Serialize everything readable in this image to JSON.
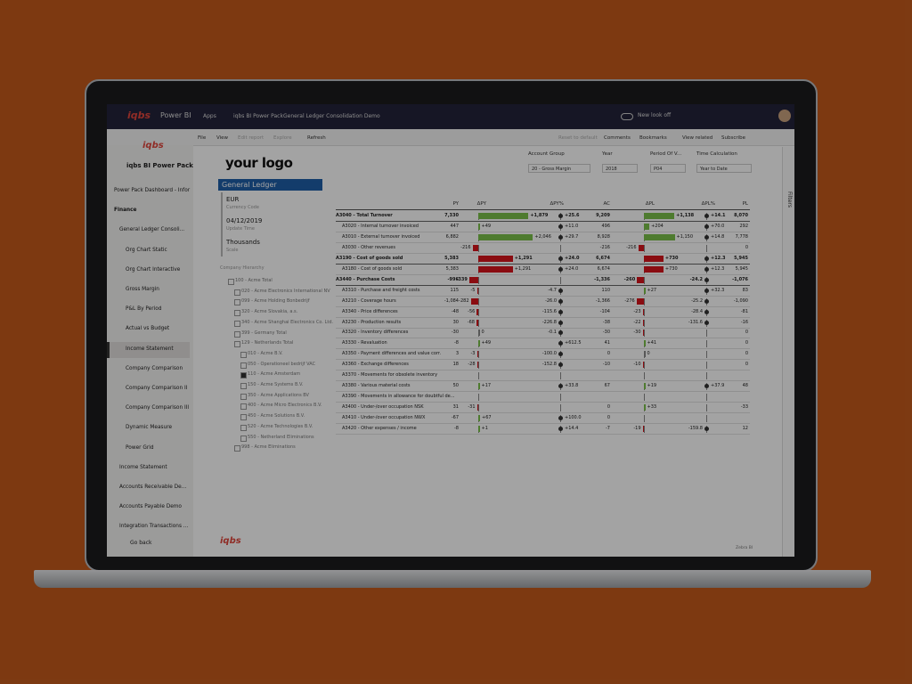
{
  "topbar": {
    "brand": "iqbs",
    "app": "Power BI",
    "apps": "Apps",
    "crumb1": "iqbs BI Power Pack",
    "crumb2": "General Ledger Consolidation Demo",
    "toggle": "New look off"
  },
  "toolbar": {
    "file": "File",
    "view": "View",
    "edit": "Edit report",
    "explore": "Explore",
    "refresh": "Refresh",
    "reset": "Reset to default",
    "comments": "Comments",
    "bookmarks": "Bookmarks",
    "related": "View related",
    "subscribe": "Subscribe"
  },
  "sidebar": {
    "logo": "iqbs",
    "title": "iqbs BI Power Pack",
    "items": [
      "Power Pack Dashboard - Infor",
      "Finance",
      "General Ledger Consoli...",
      "Org Chart Static",
      "Org Chart Interactive",
      "Gross Margin",
      "P&L By Period",
      "Actual vs Budget",
      "Income Statement",
      "Company Comparison",
      "Company Comparison II",
      "Company Comparison III",
      "Dynamic Measure",
      "Power Grid",
      "Income Statement",
      "Accounts Receivable De...",
      "Accounts Payable Demo",
      "Integration Transactions ..."
    ],
    "back": "Go back"
  },
  "report": {
    "logo": "your logo",
    "panel_title": "General Ledger",
    "fields": [
      {
        "value": "EUR",
        "label": "Currency Code"
      },
      {
        "value": "04/12/2019",
        "label": "Update Time"
      },
      {
        "value": "Thousands",
        "label": "Scale"
      }
    ],
    "hierarchy_title": "Company Hierarchy",
    "hierarchy": [
      "100 - Acme Total",
      "020 - Acme Electronics International NV",
      "099 - Acme Holding Bonbedrijf",
      "320 - Acme Slovakia, a.s.",
      "340 - Acme Shanghai Electronics Co. Ltd.",
      "399 - Germany Total",
      "129 - Netherlands Total",
      "010 - Acme B.V.",
      "050 - Operationeel bedrijf VAC",
      "110 - Acme Amsterdam",
      "150 - Acme Systems B.V.",
      "350 - Acme Applications BV",
      "400 - Acme Micro Electronics B.V.",
      "450 - Acme Solutions B.V.",
      "520 - Acme Technologies B.V.",
      "550 - Netherland Eliminations",
      "998 - Acme Eliminations"
    ],
    "filters": [
      {
        "label": "Account Group",
        "value": "20 - Gross Margin"
      },
      {
        "label": "Year",
        "value": "2018"
      },
      {
        "label": "Period Of V...",
        "value": "P04"
      },
      {
        "label": "Time Calculation",
        "value": "Year to Date"
      }
    ],
    "footer_logo": "iqbs",
    "footer_brand": "Zebra BI",
    "filters_pane": "Filters"
  },
  "table": {
    "columns": [
      "PY",
      "ΔPY",
      "ΔPY%",
      "AC",
      "ΔPL",
      "ΔPL%",
      "PL"
    ],
    "rows": [
      {
        "a": "A3040 - Total Turnover",
        "b": true,
        "py": "7,330",
        "dpy": 1879,
        "dpyl": "+1,879",
        "dpp": "+25.6",
        "ac": "9,209",
        "dpl": 1138,
        "dpll": "+1,138",
        "dplp": "+14.1",
        "pl": "8,070"
      },
      {
        "a": "A3020 - Internal turnover invoiced",
        "py": 447,
        "dpy": 49,
        "dpyl": "+49",
        "dpp": "+11.0",
        "ac": 496,
        "dpl": 204,
        "dpll": "+204",
        "dplp": "+70.0",
        "pl": 292
      },
      {
        "a": "A3010 - External turnover invoiced",
        "py": "6,882",
        "dpy": 2046,
        "dpyl": "+2,046",
        "dpp": "+29.7",
        "ac": "8,928",
        "dpl": 1150,
        "dpll": "+1,150",
        "dplp": "+14.8",
        "pl": "7,778"
      },
      {
        "a": "A3030 - Other revenues",
        "dpy": -216,
        "ac": -216,
        "dpl": -216,
        "pl": 0
      },
      {
        "a": "A3190 - Cost of goods sold",
        "b": true,
        "inv": true,
        "py": "5,383",
        "dpy": 1291,
        "dpyl": "+1,291",
        "dpp": "+24.0",
        "ac": "6,674",
        "dpl": 730,
        "dpll": "+730",
        "dplp": "+12.3",
        "pl": "5,945"
      },
      {
        "a": "A3180 - Cost of goods sold",
        "inv": true,
        "py": "5,383",
        "dpy": 1291,
        "dpyl": "+1,291",
        "dpp": "+24.0",
        "ac": "6,674",
        "dpl": 730,
        "dpll": "+730",
        "dplp": "+12.3",
        "pl": "5,945"
      },
      {
        "a": "A3440 - Purchase Costs",
        "b": true,
        "py": -996,
        "dpy": -339,
        "ac": "-1,336",
        "dpl": -260,
        "dplp": "-24.2",
        "pl": "-1,076"
      },
      {
        "a": "A3310 - Purchase and freight costs",
        "py": 115,
        "dpy": -5,
        "dpp": "-4.7",
        "ac": 110,
        "dpl": 27,
        "dpll": "+27",
        "dplp": "+32.3",
        "pl": 83
      },
      {
        "a": "A3210 - Coverage hours",
        "py": "-1,084",
        "dpy": -282,
        "dpp": "-26.0",
        "ac": "-1,366",
        "dpl": -276,
        "dplp": "-25.2",
        "pl": "-1,090"
      },
      {
        "a": "A3340 - Price differences",
        "py": -48,
        "dpy": -56,
        "dpp": "-115.6",
        "ac": -104,
        "dpl": -23,
        "dplp": "-28.4",
        "pl": -81
      },
      {
        "a": "A3230 - Production results",
        "py": 30,
        "dpy": -68,
        "dpp": "-226.8",
        "ac": -38,
        "dpl": -22,
        "dplp": "-131.6",
        "pl": -16
      },
      {
        "a": "A3320 - Inventory differences",
        "py": -30,
        "dpy": 0,
        "dpp": "-0.1",
        "ac": -30,
        "dpl": -30,
        "pl": 0
      },
      {
        "a": "A3330 - Revaluation",
        "py": -8,
        "dpy": 49,
        "dpyl": "+49",
        "dpp": "+612.5",
        "ac": 41,
        "dpl": 41,
        "dpll": "+41",
        "pl": 0
      },
      {
        "a": "A3350 - Payment differences and value corr.",
        "py": 3,
        "dpy": -3,
        "dpp": "-100.0",
        "ac": 0,
        "dpl": 0,
        "pl": 0
      },
      {
        "a": "A3360 - Exchange differences",
        "py": 18,
        "dpy": -28,
        "dpp": "-152.8",
        "ac": -10,
        "dpl": -10,
        "pl": 0
      },
      {
        "a": "A3370 - Movements for obsolete inventory"
      },
      {
        "a": "A3380 - Various material costs",
        "py": 50,
        "dpy": 17,
        "dpyl": "+17",
        "dpp": "+33.8",
        "ac": 67,
        "dpl": 19,
        "dpll": "+19",
        "dplp": "+37.9",
        "pl": 48
      },
      {
        "a": "A3390 - Movements in allowance for doubtful de..."
      },
      {
        "a": "A3400 - Under-/over occupation NSK",
        "py": 31,
        "dpy": -31,
        "ac": 0,
        "dpl": 33,
        "dpll": "+33",
        "pl": -33
      },
      {
        "a": "A3410 - Under-/over occupation NWX",
        "py": -67,
        "dpy": 67,
        "dpyl": "+67",
        "dpp": "+100.0",
        "ac": 0
      },
      {
        "a": "A3420 - Other expenses / income",
        "py": -8,
        "dpy": 1,
        "dpyl": "+1",
        "dpp": "+14.4",
        "ac": -7,
        "dpl": -19,
        "dplp": "-159.8",
        "pl": 12
      }
    ]
  }
}
